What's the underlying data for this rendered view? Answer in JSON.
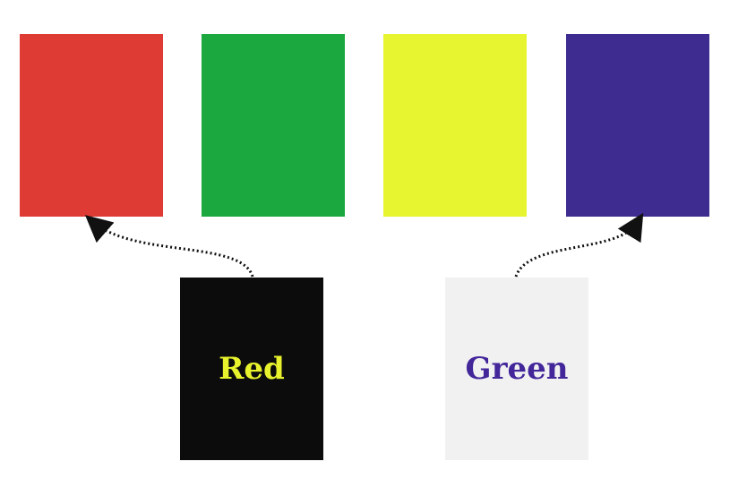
{
  "swatches": [
    {
      "name": "red",
      "color": "#de3b35"
    },
    {
      "name": "green",
      "color": "#1aa83f"
    },
    {
      "name": "yellow",
      "color": "#e6f530"
    },
    {
      "name": "purple",
      "color": "#3e2c91"
    }
  ],
  "cards": [
    {
      "word": "Red",
      "ink_color": "#e8f22c",
      "background": "#0c0c0c",
      "arrow_target": "red"
    },
    {
      "word": "Green",
      "ink_color": "#42269a",
      "background": "#f1f1f1",
      "arrow_target": "purple"
    }
  ],
  "connector_style": "dotted-curved-arrow",
  "connector_color": "#111111"
}
